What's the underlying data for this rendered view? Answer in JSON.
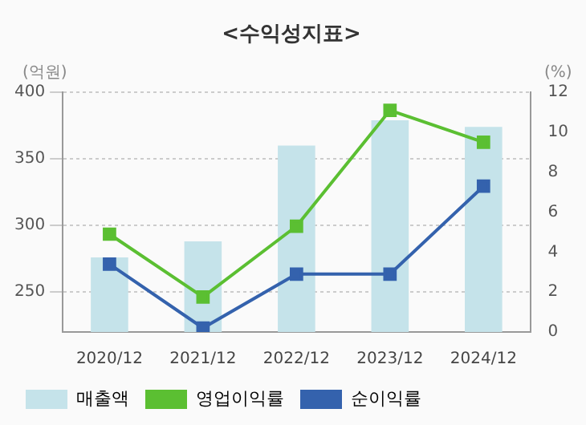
{
  "chart_data": {
    "type": "bar",
    "title": "<수익성지표>",
    "ylabel": "(억원)",
    "y2label": "(%)",
    "categories": [
      "2020/12",
      "2021/12",
      "2022/12",
      "2023/12",
      "2024/12"
    ],
    "series": [
      {
        "name": "매출액",
        "color": "#c5e3ea",
        "values": [
          276,
          288,
          360,
          379,
          374
        ]
      },
      {
        "name": "영업이익률",
        "type": "line",
        "axis": "y2",
        "color": "#5bbf32",
        "values": [
          4.9,
          1.75,
          5.3,
          11.1,
          9.5
        ]
      },
      {
        "name": "순이익률",
        "type": "line",
        "axis": "y2",
        "color": "#3462ad",
        "values": [
          3.4,
          0.2,
          2.9,
          2.9,
          7.3
        ]
      }
    ],
    "ylim": [
      220,
      400
    ],
    "yticks": [
      250,
      300,
      350,
      400
    ],
    "y2lim": [
      0,
      12
    ],
    "y2ticks": [
      0,
      2,
      4,
      6,
      8,
      10,
      12
    ],
    "grid": "y",
    "legend": "bottom",
    "marker": "square",
    "line_style": "solid"
  }
}
